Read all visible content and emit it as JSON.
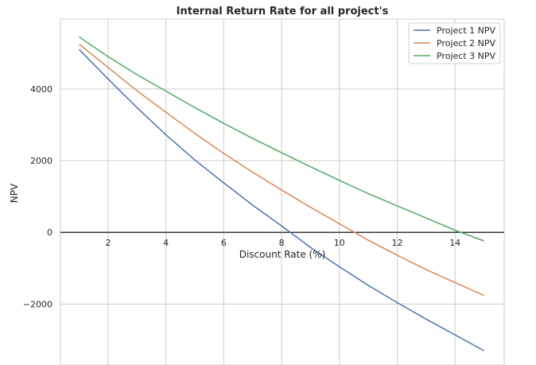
{
  "chart_data": {
    "type": "line",
    "title": "Internal Return Rate for all project's",
    "xlabel": "Discount Rate (%)",
    "ylabel": "NPV",
    "xlim": [
      0.35,
      15.7
    ],
    "ylim": [
      -3700,
      5950
    ],
    "x_ticks": [
      2,
      4,
      6,
      8,
      10,
      12,
      14
    ],
    "y_ticks": [
      -2000,
      0,
      2000,
      4000
    ],
    "y_tick_labels": [
      "−2000",
      "0",
      "2000",
      "4000"
    ],
    "grid": true,
    "zero_line": true,
    "legend_position": "top-right",
    "x": [
      1,
      2,
      3,
      4,
      5,
      6,
      7,
      8,
      9,
      10,
      11,
      12,
      13,
      14,
      15
    ],
    "series": [
      {
        "name": "Project 1 NPV",
        "color": "#4c72b0",
        "values": [
          5100,
          4280,
          3480,
          2720,
          2020,
          1380,
          760,
          180,
          -420,
          -960,
          -1480,
          -1960,
          -2420,
          -2860,
          -3300
        ]
      },
      {
        "name": "Project 2 NPV",
        "color": "#dd8452",
        "values": [
          5250,
          4600,
          3950,
          3350,
          2760,
          2200,
          1680,
          1180,
          700,
          240,
          -220,
          -640,
          -1040,
          -1400,
          -1760
        ]
      },
      {
        "name": "Project 3 NPV",
        "color": "#55a868",
        "values": [
          5450,
          4900,
          4400,
          3940,
          3480,
          3040,
          2620,
          2220,
          1830,
          1450,
          1080,
          740,
          400,
          60,
          -240
        ]
      }
    ]
  }
}
